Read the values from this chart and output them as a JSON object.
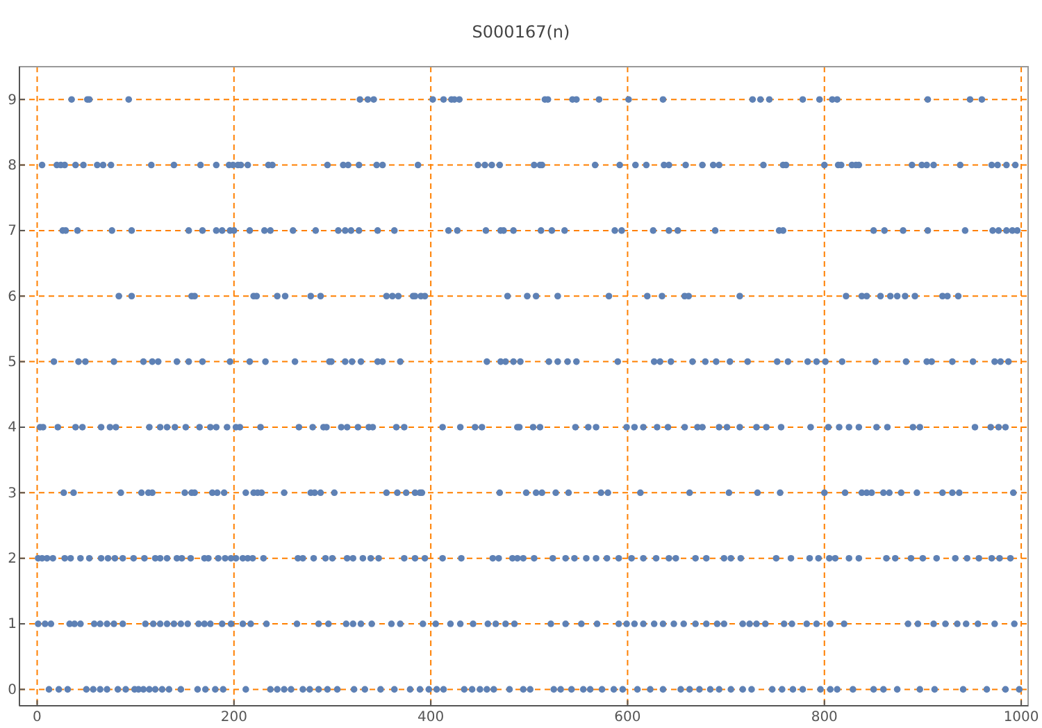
{
  "chart_data": {
    "type": "scatter",
    "title": "S000167(n)",
    "xlim": [
      -18,
      1007
    ],
    "ylim": [
      -0.25,
      9.5
    ],
    "xticks": [
      0,
      200,
      400,
      600,
      800,
      1000
    ],
    "yticks": [
      0,
      1,
      2,
      3,
      4,
      5,
      6,
      7,
      8,
      9
    ],
    "grid": true,
    "marker": "circle",
    "series": [
      {
        "color": "#5e81b5",
        "x": [
          35,
          51,
          53,
          93,
          328,
          336,
          342,
          402,
          413,
          421,
          424,
          429,
          516,
          519,
          544,
          548,
          571,
          601,
          636,
          727,
          735,
          744,
          778,
          795,
          808,
          813,
          905,
          948,
          960,
          5,
          20,
          24,
          28,
          39,
          47,
          61,
          67,
          75,
          116,
          139,
          166,
          182,
          195,
          199,
          204,
          207,
          214,
          235,
          239,
          295,
          311,
          316,
          327,
          345,
          351,
          387,
          448,
          455,
          462,
          470,
          505,
          511,
          513,
          567,
          592,
          608,
          619,
          637,
          642,
          659,
          676,
          687,
          693,
          738,
          758,
          761,
          800,
          814,
          817,
          828,
          832,
          835,
          889,
          899,
          904,
          911,
          938,
          970,
          976,
          985,
          994,
          26,
          29,
          41,
          76,
          96,
          154,
          168,
          182,
          188,
          196,
          200,
          216,
          231,
          237,
          260,
          283,
          306,
          313,
          319,
          327,
          346,
          363,
          418,
          427,
          456,
          471,
          474,
          484,
          512,
          523,
          536,
          587,
          594,
          626,
          642,
          651,
          689,
          754,
          758,
          850,
          861,
          880,
          905,
          943,
          971,
          977,
          985,
          991,
          996,
          83,
          96,
          157,
          160,
          220,
          223,
          244,
          252,
          278,
          288,
          355,
          361,
          367,
          382,
          384,
          390,
          394,
          478,
          498,
          507,
          529,
          581,
          620,
          635,
          658,
          662,
          714,
          822,
          838,
          843,
          857,
          867,
          874,
          882,
          892,
          920,
          925,
          936,
          17,
          42,
          49,
          78,
          108,
          117,
          123,
          142,
          154,
          168,
          196,
          216,
          232,
          262,
          297,
          299,
          313,
          320,
          329,
          346,
          351,
          369,
          457,
          471,
          476,
          484,
          491,
          520,
          529,
          539,
          548,
          590,
          627,
          633,
          644,
          666,
          679,
          690,
          704,
          722,
          752,
          763,
          783,
          792,
          801,
          818,
          852,
          883,
          904,
          909,
          930,
          951,
          973,
          979,
          987,
          3,
          6,
          21,
          39,
          46,
          65,
          74,
          80,
          114,
          125,
          132,
          140,
          151,
          165,
          176,
          182,
          193,
          202,
          206,
          227,
          266,
          280,
          291,
          294,
          309,
          315,
          326,
          337,
          341,
          365,
          373,
          412,
          430,
          445,
          452,
          488,
          490,
          504,
          511,
          547,
          560,
          568,
          599,
          607,
          616,
          630,
          641,
          658,
          671,
          676,
          693,
          701,
          714,
          731,
          741,
          756,
          786,
          804,
          815,
          825,
          835,
          853,
          864,
          890,
          897,
          953,
          969,
          977,
          984,
          27,
          37,
          85,
          106,
          113,
          117,
          150,
          157,
          160,
          178,
          183,
          190,
          212,
          220,
          224,
          228,
          251,
          278,
          282,
          288,
          302,
          355,
          366,
          375,
          384,
          389,
          391,
          470,
          497,
          507,
          513,
          527,
          540,
          573,
          580,
          613,
          663,
          703,
          732,
          755,
          800,
          821,
          838,
          843,
          848,
          860,
          866,
          878,
          894,
          920,
          930,
          937,
          992,
          1,
          5,
          10,
          16,
          28,
          34,
          44,
          53,
          65,
          72,
          79,
          87,
          98,
          109,
          120,
          125,
          132,
          142,
          147,
          156,
          170,
          174,
          184,
          191,
          197,
          202,
          209,
          214,
          219,
          230,
          265,
          270,
          281,
          293,
          300,
          315,
          321,
          331,
          339,
          347,
          373,
          384,
          394,
          412,
          431,
          463,
          469,
          483,
          488,
          494,
          505,
          524,
          537,
          546,
          558,
          568,
          579,
          591,
          604,
          616,
          629,
          642,
          649,
          669,
          680,
          698,
          705,
          715,
          751,
          766,
          785,
          794,
          805,
          811,
          825,
          835,
          863,
          872,
          888,
          900,
          914,
          933,
          945,
          957,
          970,
          978,
          989,
          1,
          8,
          14,
          33,
          38,
          44,
          58,
          64,
          71,
          78,
          87,
          110,
          118,
          125,
          132,
          139,
          146,
          153,
          164,
          170,
          176,
          188,
          197,
          209,
          217,
          233,
          264,
          286,
          296,
          314,
          321,
          329,
          340,
          360,
          369,
          392,
          405,
          420,
          430,
          443,
          458,
          466,
          476,
          485,
          522,
          537,
          553,
          569,
          591,
          599,
          607,
          616,
          627,
          636,
          647,
          657,
          669,
          680,
          691,
          698,
          717,
          724,
          731,
          740,
          759,
          767,
          782,
          792,
          806,
          820,
          885,
          895,
          911,
          923,
          935,
          944,
          956,
          973,
          993,
          12,
          22,
          31,
          50,
          57,
          64,
          71,
          82,
          90,
          99,
          103,
          108,
          114,
          120,
          127,
          134,
          146,
          163,
          171,
          181,
          189,
          212,
          237,
          244,
          251,
          258,
          270,
          277,
          286,
          295,
          305,
          322,
          333,
          349,
          363,
          379,
          389,
          398,
          406,
          413,
          434,
          442,
          450,
          457,
          464,
          480,
          494,
          501,
          525,
          532,
          543,
          555,
          562,
          574,
          586,
          595,
          610,
          623,
          636,
          654,
          663,
          673,
          684,
          693,
          705,
          717,
          726,
          747,
          757,
          768,
          778,
          796,
          806,
          813,
          829,
          850,
          860,
          874,
          897,
          912,
          941,
          965,
          984,
          998
        ],
        "values": [
          9,
          9,
          9,
          9,
          9,
          9,
          9,
          9,
          9,
          9,
          9,
          9,
          9,
          9,
          9,
          9,
          9,
          9,
          9,
          9,
          9,
          9,
          9,
          9,
          9,
          9,
          9,
          9,
          9,
          8,
          8,
          8,
          8,
          8,
          8,
          8,
          8,
          8,
          8,
          8,
          8,
          8,
          8,
          8,
          8,
          8,
          8,
          8,
          8,
          8,
          8,
          8,
          8,
          8,
          8,
          8,
          8,
          8,
          8,
          8,
          8,
          8,
          8,
          8,
          8,
          8,
          8,
          8,
          8,
          8,
          8,
          8,
          8,
          8,
          8,
          8,
          8,
          8,
          8,
          8,
          8,
          8,
          8,
          8,
          8,
          8,
          8,
          8,
          8,
          8,
          8,
          7,
          7,
          7,
          7,
          7,
          7,
          7,
          7,
          7,
          7,
          7,
          7,
          7,
          7,
          7,
          7,
          7,
          7,
          7,
          7,
          7,
          7,
          7,
          7,
          7,
          7,
          7,
          7,
          7,
          7,
          7,
          7,
          7,
          7,
          7,
          7,
          7,
          7,
          7,
          7,
          7,
          7,
          7,
          7,
          7,
          7,
          7,
          7,
          7,
          6,
          6,
          6,
          6,
          6,
          6,
          6,
          6,
          6,
          6,
          6,
          6,
          6,
          6,
          6,
          6,
          6,
          6,
          6,
          6,
          6,
          6,
          6,
          6,
          6,
          6,
          6,
          6,
          6,
          6,
          6,
          6,
          6,
          6,
          6,
          6,
          6,
          6,
          5,
          5,
          5,
          5,
          5,
          5,
          5,
          5,
          5,
          5,
          5,
          5,
          5,
          5,
          5,
          5,
          5,
          5,
          5,
          5,
          5,
          5,
          5,
          5,
          5,
          5,
          5,
          5,
          5,
          5,
          5,
          5,
          5,
          5,
          5,
          5,
          5,
          5,
          5,
          5,
          5,
          5,
          5,
          5,
          5,
          5,
          5,
          5,
          5,
          5,
          5,
          5,
          5,
          5,
          5,
          4,
          4,
          4,
          4,
          4,
          4,
          4,
          4,
          4,
          4,
          4,
          4,
          4,
          4,
          4,
          4,
          4,
          4,
          4,
          4,
          4,
          4,
          4,
          4,
          4,
          4,
          4,
          4,
          4,
          4,
          4,
          4,
          4,
          4,
          4,
          4,
          4,
          4,
          4,
          4,
          4,
          4,
          4,
          4,
          4,
          4,
          4,
          4,
          4,
          4,
          4,
          4,
          4,
          4,
          4,
          4,
          4,
          4,
          4,
          4,
          4,
          4,
          4,
          4,
          4,
          4,
          4,
          4,
          4,
          3,
          3,
          3,
          3,
          3,
          3,
          3,
          3,
          3,
          3,
          3,
          3,
          3,
          3,
          3,
          3,
          3,
          3,
          3,
          3,
          3,
          3,
          3,
          3,
          3,
          3,
          3,
          3,
          3,
          3,
          3,
          3,
          3,
          3,
          3,
          3,
          3,
          3,
          3,
          3,
          3,
          3,
          3,
          3,
          3,
          3,
          3,
          3,
          3,
          3,
          3,
          3,
          3,
          2,
          2,
          2,
          2,
          2,
          2,
          2,
          2,
          2,
          2,
          2,
          2,
          2,
          2,
          2,
          2,
          2,
          2,
          2,
          2,
          2,
          2,
          2,
          2,
          2,
          2,
          2,
          2,
          2,
          2,
          2,
          2,
          2,
          2,
          2,
          2,
          2,
          2,
          2,
          2,
          2,
          2,
          2,
          2,
          2,
          2,
          2,
          2,
          2,
          2,
          2,
          2,
          2,
          2,
          2,
          2,
          2,
          2,
          2,
          2,
          2,
          2,
          2,
          2,
          2,
          2,
          2,
          2,
          2,
          2,
          2,
          2,
          2,
          2,
          2,
          2,
          2,
          2,
          2,
          2,
          2,
          2,
          2,
          2,
          2,
          2,
          2,
          1,
          1,
          1,
          1,
          1,
          1,
          1,
          1,
          1,
          1,
          1,
          1,
          1,
          1,
          1,
          1,
          1,
          1,
          1,
          1,
          1,
          1,
          1,
          1,
          1,
          1,
          1,
          1,
          1,
          1,
          1,
          1,
          1,
          1,
          1,
          1,
          1,
          1,
          1,
          1,
          1,
          1,
          1,
          1,
          1,
          1,
          1,
          1,
          1,
          1,
          1,
          1,
          1,
          1,
          1,
          1,
          1,
          1,
          1,
          1,
          1,
          1,
          1,
          1,
          1,
          1,
          1,
          1,
          1,
          1,
          1,
          1,
          1,
          1,
          1,
          1,
          1,
          1,
          1,
          0,
          0,
          0,
          0,
          0,
          0,
          0,
          0,
          0,
          0,
          0,
          0,
          0,
          0,
          0,
          0,
          0,
          0,
          0,
          0,
          0,
          0,
          0,
          0,
          0,
          0,
          0,
          0,
          0,
          0,
          0,
          0,
          0,
          0,
          0,
          0,
          0,
          0,
          0,
          0,
          0,
          0,
          0,
          0,
          0,
          0,
          0,
          0,
          0,
          0,
          0,
          0,
          0,
          0,
          0,
          0,
          0,
          0,
          0,
          0,
          0,
          0,
          0,
          0,
          0,
          0,
          0,
          0,
          0,
          0,
          0,
          0,
          0,
          0,
          0,
          0,
          0,
          0,
          0,
          0,
          0,
          0,
          0,
          0
        ]
      }
    ]
  }
}
